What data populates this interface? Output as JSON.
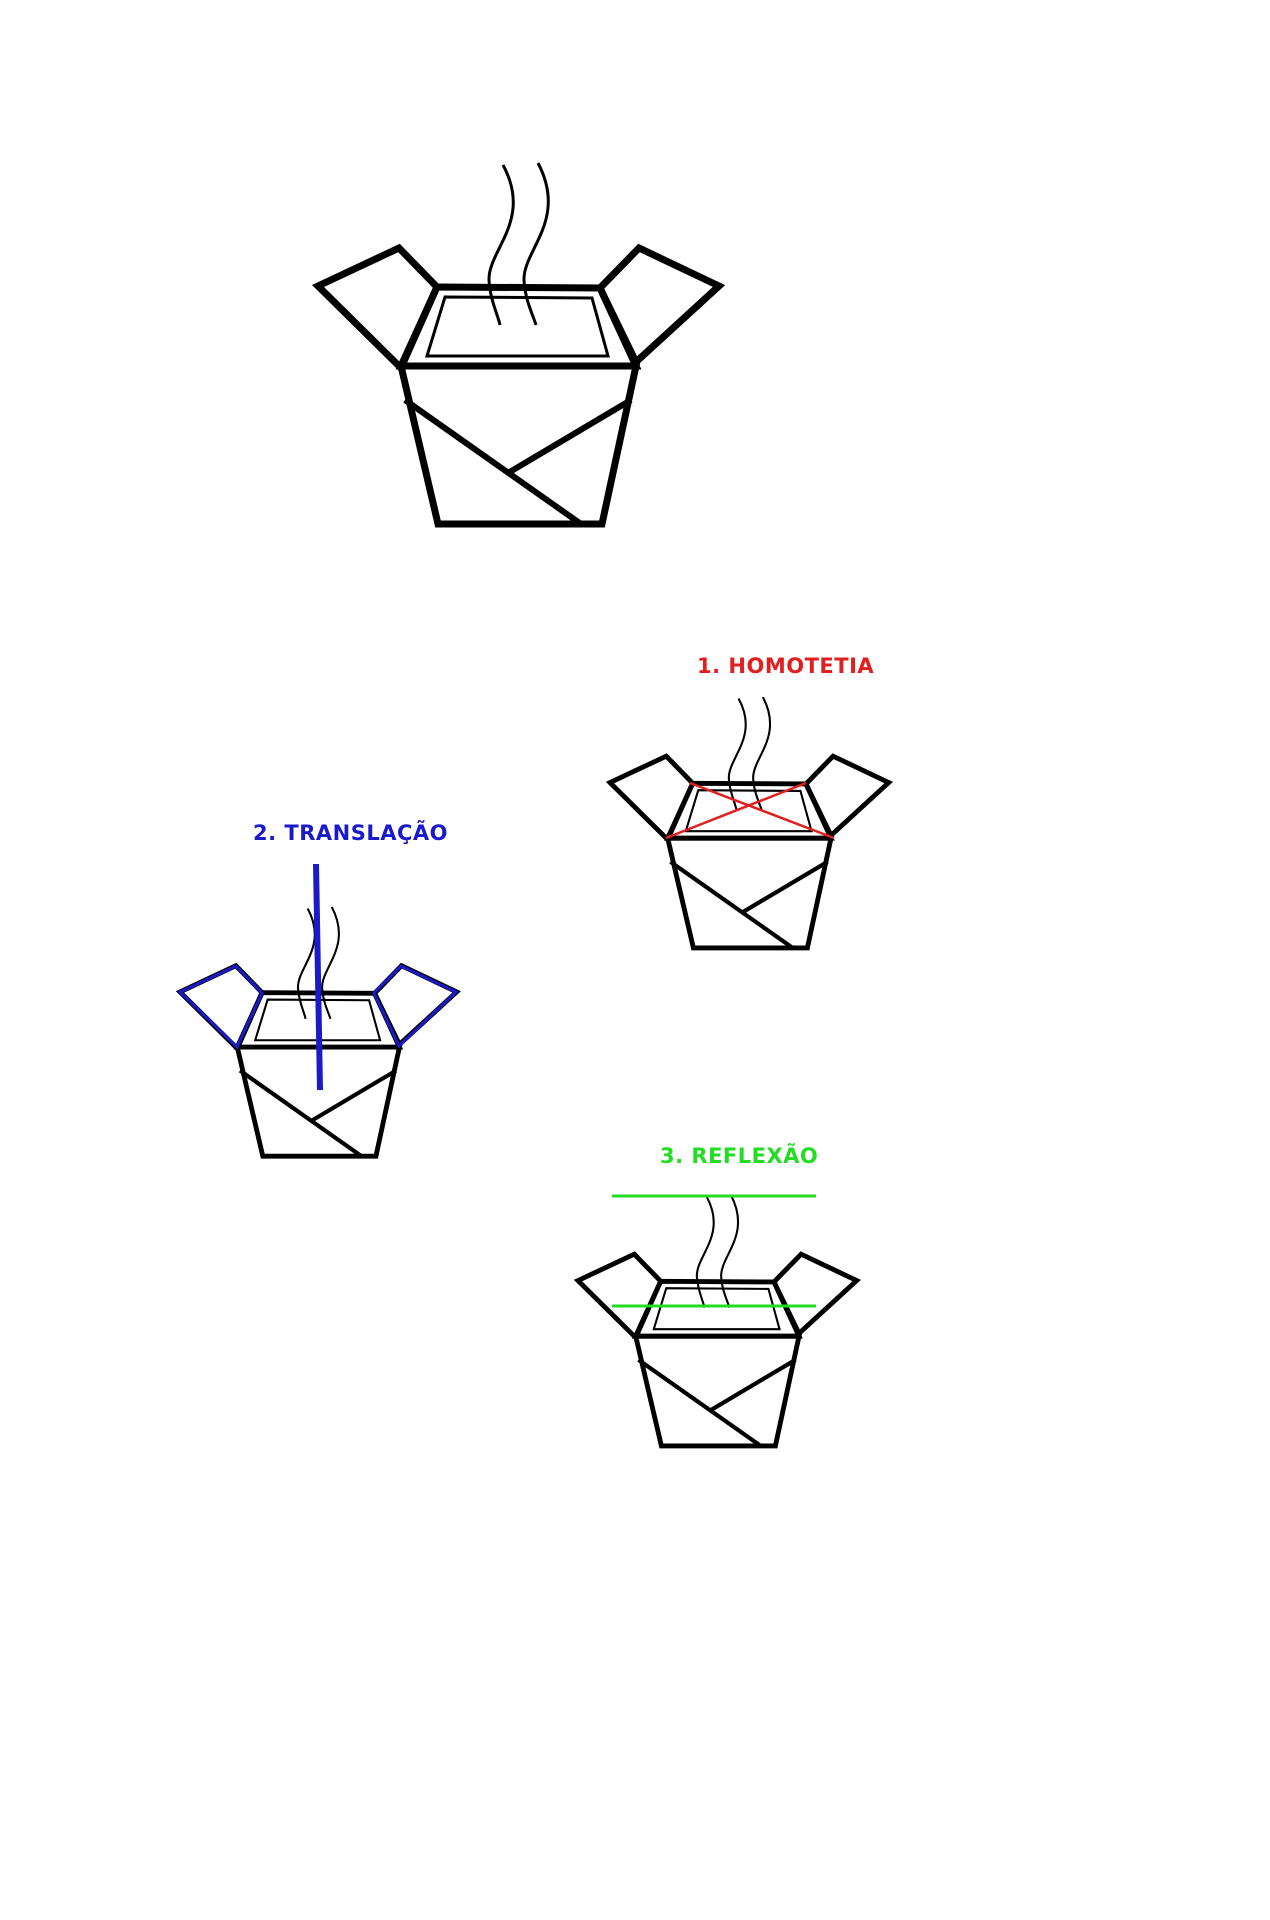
{
  "labels": {
    "homotetia": "1. HOMOTETIA",
    "translacao": "2. TRANSLAÇÃO",
    "reflexao": "3. REFLEXÃO"
  },
  "colors": {
    "outline": "#000000",
    "homotetia": "#e02020",
    "translacao": "#1a1ac8",
    "reflexao": "#22dd22"
  },
  "figures": [
    {
      "id": "original",
      "caption": ""
    },
    {
      "id": "homotetia",
      "caption": "1. HOMOTETIA"
    },
    {
      "id": "translacao",
      "caption": "2. TRANSLAÇÃO"
    },
    {
      "id": "reflexao",
      "caption": "3. REFLEXÃO"
    }
  ]
}
